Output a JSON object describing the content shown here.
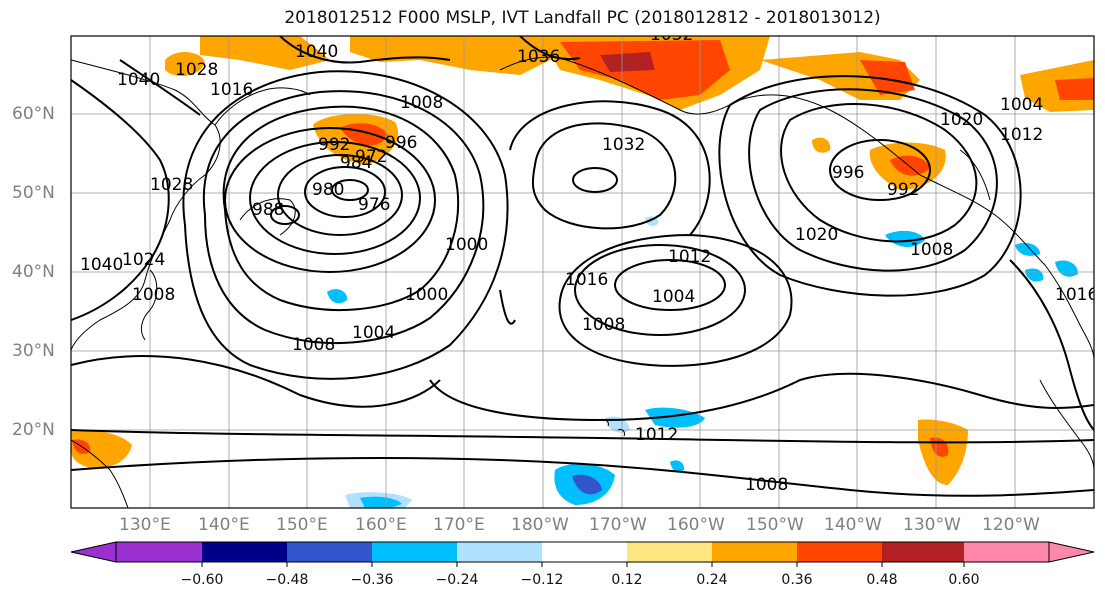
{
  "title": "2018012512 F000 MSLP, IVT Landfall PC (2018012812 - 2018013012)",
  "map": {
    "lat_labels": [
      "60°N",
      "50°N",
      "40°N",
      "30°N",
      "20°N"
    ],
    "lon_labels": [
      "130°E",
      "140°E",
      "150°E",
      "160°E",
      "170°E",
      "180°W",
      "170°W",
      "160°W",
      "150°W",
      "140°W",
      "130°W",
      "120°W"
    ],
    "mslp_labels": [
      "1040",
      "1040",
      "1036",
      "1032",
      "1028",
      "1024",
      "1020",
      "1016",
      "1012",
      "1008",
      "1004",
      "1000",
      "996",
      "992",
      "988",
      "984",
      "980",
      "976",
      "972",
      "1040",
      "1032",
      "1028",
      "1012",
      "1008",
      "1004",
      "1016",
      "1020",
      "1008",
      "1012",
      "1008",
      "1004",
      "1008",
      "1016",
      "1008",
      "1000",
      "996",
      "992"
    ],
    "grid": true,
    "contour_color": "#000000",
    "coastline_color": "#000000"
  },
  "colorbar": {
    "ticks": [
      "−0.60",
      "−0.48",
      "−0.36",
      "−0.24",
      "−0.12",
      "0.12",
      "0.24",
      "0.36",
      "0.48",
      "0.60"
    ],
    "colors": [
      "#9b30d0",
      "#000088",
      "#3355cc",
      "#00bfff",
      "#b0e2ff",
      "#ffffff",
      "#ffe680",
      "#ffa500",
      "#ff4500",
      "#b22222",
      "#ff88aa"
    ]
  }
}
